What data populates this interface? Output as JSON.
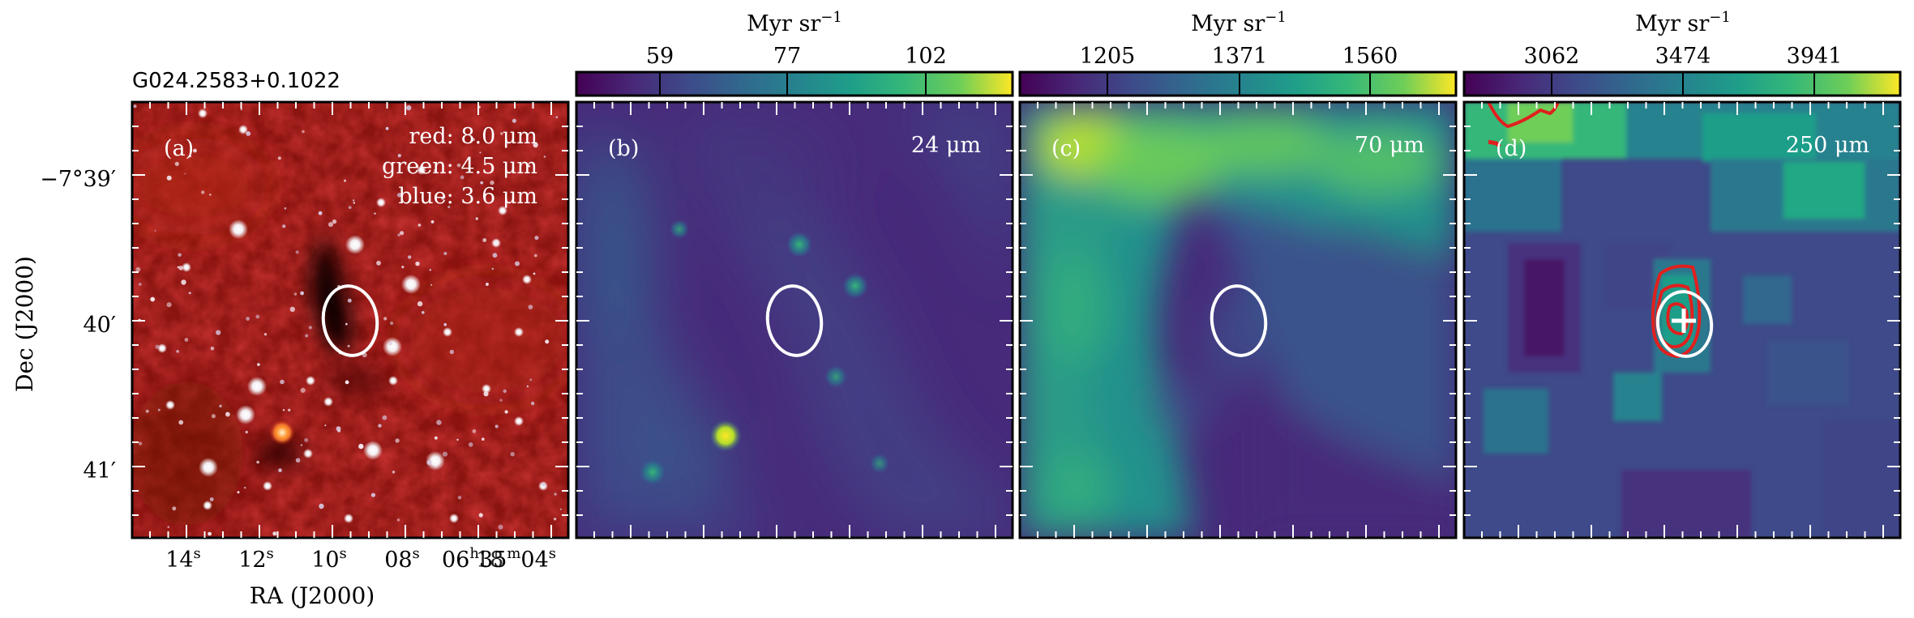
{
  "figure": {
    "source_name": "G024.2583+0.1022",
    "panels": [
      {
        "id": "a",
        "label": "(a)",
        "legend": [
          "red: 8.0 μm",
          "green: 4.5 μm",
          "blue: 3.6 μm"
        ]
      },
      {
        "id": "b",
        "label": "(b)",
        "wavelength": "24 μm",
        "colorbar": {
          "unit": "Myr sr",
          "unit_exp": "−1",
          "ticks": [
            "59",
            "77",
            "102"
          ]
        }
      },
      {
        "id": "c",
        "label": "(c)",
        "wavelength": "70 μm",
        "colorbar": {
          "unit": "Myr sr",
          "unit_exp": "−1",
          "ticks": [
            "1205",
            "1371",
            "1560"
          ]
        }
      },
      {
        "id": "d",
        "label": "(d)",
        "wavelength": "250 μm",
        "colorbar": {
          "unit": "Myr sr",
          "unit_exp": "−1",
          "ticks": [
            "3062",
            "3474",
            "3941"
          ]
        }
      }
    ],
    "axes": {
      "ylabel": "Dec (J2000)",
      "xlabel": "RA (J2000)",
      "dec_ticks": [
        "−7°39′",
        "40′",
        "41′"
      ],
      "ra_ticks": [
        "14",
        "12",
        "10",
        "08"
      ],
      "ra_tick_unit": "s",
      "ra_last_tick": {
        "a": "06",
        "b": "h",
        "c": "35",
        "d": "m",
        "e": "04",
        "f": "s"
      },
      "ra_overlap": "18"
    },
    "colormap": "viridis",
    "annotations": {
      "ellipse_color": "#ffffff",
      "contour_color": "#e0201e",
      "marker": "white cross"
    }
  }
}
